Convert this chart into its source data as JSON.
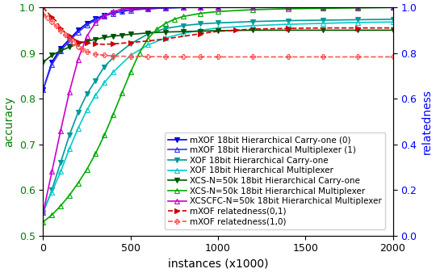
{
  "title": "",
  "xlabel": "instances (x1000)",
  "ylabel_left": "accuracy",
  "ylabel_right": "relatedness",
  "xlim": [
    0,
    2000
  ],
  "ylim_left": [
    0.5,
    1.0
  ],
  "ylim_right": [
    0.0,
    1.0
  ],
  "series": [
    {
      "label": "mXOF 18bit Hierarchical Carry-one (0)",
      "color": "#0000dd",
      "marker": "v",
      "fillstyle": "full",
      "linestyle": "-",
      "axis": "left",
      "x": [
        0,
        50,
        100,
        150,
        200,
        250,
        300,
        350,
        400,
        450,
        500,
        600,
        700,
        800,
        900,
        1000,
        1200,
        1400,
        1600,
        1800,
        2000
      ],
      "y": [
        0.82,
        0.88,
        0.91,
        0.93,
        0.95,
        0.965,
        0.975,
        0.983,
        0.988,
        0.992,
        0.995,
        0.997,
        0.999,
        1.0,
        1.0,
        1.0,
        1.0,
        1.0,
        1.0,
        1.0,
        1.0
      ]
    },
    {
      "label": "mXOF 18bit Hierarchical Multiplexer (1)",
      "color": "#3333ff",
      "marker": "^",
      "fillstyle": "none",
      "linestyle": "-",
      "axis": "left",
      "x": [
        0,
        50,
        100,
        150,
        200,
        250,
        300,
        350,
        400,
        450,
        500,
        600,
        700,
        800,
        900,
        1000,
        1200,
        1400,
        1600,
        1800,
        2000
      ],
      "y": [
        0.82,
        0.875,
        0.905,
        0.926,
        0.946,
        0.961,
        0.973,
        0.981,
        0.987,
        0.991,
        0.994,
        0.997,
        0.999,
        1.0,
        1.0,
        1.0,
        1.0,
        1.0,
        1.0,
        1.0,
        1.0
      ]
    },
    {
      "label": "XOF 18bit Hierarchical Carry-one",
      "color": "#009999",
      "marker": "v",
      "fillstyle": "full",
      "linestyle": "-",
      "axis": "left",
      "x": [
        0,
        50,
        100,
        150,
        200,
        250,
        300,
        350,
        400,
        500,
        600,
        700,
        800,
        900,
        1000,
        1200,
        1400,
        1600,
        1800,
        2000
      ],
      "y": [
        0.55,
        0.6,
        0.66,
        0.72,
        0.77,
        0.81,
        0.84,
        0.87,
        0.89,
        0.92,
        0.942,
        0.954,
        0.96,
        0.964,
        0.966,
        0.969,
        0.971,
        0.972,
        0.973,
        0.974
      ]
    },
    {
      "label": "XOF 18bit Hierarchical Multiplexer",
      "color": "#00cccc",
      "marker": "^",
      "fillstyle": "none",
      "linestyle": "-",
      "axis": "left",
      "x": [
        0,
        50,
        100,
        150,
        200,
        250,
        300,
        350,
        400,
        500,
        600,
        700,
        800,
        900,
        1000,
        1200,
        1400,
        1600,
        1800,
        2000
      ],
      "y": [
        0.555,
        0.595,
        0.64,
        0.69,
        0.735,
        0.775,
        0.808,
        0.835,
        0.858,
        0.895,
        0.918,
        0.933,
        0.943,
        0.95,
        0.955,
        0.96,
        0.963,
        0.965,
        0.967,
        0.968
      ]
    },
    {
      "label": "XCS-N=50k 18bit Hierarchical Carry-one",
      "color": "#005500",
      "marker": "v",
      "fillstyle": "full",
      "linestyle": "-",
      "axis": "left",
      "x": [
        0,
        50,
        100,
        150,
        200,
        250,
        300,
        350,
        400,
        450,
        500,
        600,
        700,
        800,
        900,
        1000,
        1200,
        1400,
        1600,
        1800,
        2000
      ],
      "y": [
        0.88,
        0.895,
        0.905,
        0.913,
        0.92,
        0.926,
        0.93,
        0.934,
        0.937,
        0.939,
        0.941,
        0.944,
        0.946,
        0.947,
        0.948,
        0.949,
        0.95,
        0.95,
        0.95,
        0.95,
        0.95
      ]
    },
    {
      "label": "XCS-N=50k 18bit Hierarchical Multiplexer",
      "color": "#00aa00",
      "marker": "^",
      "fillstyle": "none",
      "linestyle": "-",
      "axis": "left",
      "x": [
        0,
        50,
        100,
        150,
        200,
        250,
        300,
        350,
        400,
        450,
        500,
        550,
        600,
        650,
        700,
        750,
        800,
        900,
        1000,
        1200,
        1400,
        1600,
        1800,
        2000
      ],
      "y": [
        0.53,
        0.545,
        0.565,
        0.588,
        0.615,
        0.645,
        0.68,
        0.72,
        0.765,
        0.812,
        0.858,
        0.9,
        0.932,
        0.952,
        0.965,
        0.974,
        0.98,
        0.987,
        0.991,
        0.995,
        0.997,
        0.998,
        0.999,
        1.0
      ]
    },
    {
      "label": "XCSCFC-N=50k 18bit Hierarchical Multiplexer",
      "color": "#cc00cc",
      "marker": "^",
      "fillstyle": "none",
      "linestyle": "-",
      "axis": "left",
      "x": [
        0,
        50,
        100,
        150,
        200,
        250,
        300,
        350,
        400,
        450,
        500,
        600,
        700,
        800,
        900,
        1000,
        1200,
        1400,
        1600,
        1800,
        2000
      ],
      "y": [
        0.55,
        0.64,
        0.73,
        0.815,
        0.886,
        0.937,
        0.967,
        0.982,
        0.991,
        0.996,
        0.998,
        0.999,
        1.0,
        1.0,
        1.0,
        1.0,
        1.0,
        1.0,
        1.0,
        1.0,
        1.0
      ]
    },
    {
      "label": "mXOF relatedness(0,1)",
      "color": "#cc0000",
      "marker": ">",
      "fillstyle": "full",
      "linestyle": "--",
      "axis": "right",
      "x": [
        0,
        25,
        50,
        75,
        100,
        125,
        150,
        175,
        200,
        225,
        250,
        275,
        300,
        350,
        400,
        450,
        500,
        600,
        700,
        800,
        900,
        1000,
        1100,
        1200,
        1400,
        1600,
        1800,
        2000
      ],
      "y": [
        1.0,
        0.978,
        0.957,
        0.94,
        0.91,
        0.89,
        0.875,
        0.862,
        0.85,
        0.848,
        0.845,
        0.843,
        0.84,
        0.838,
        0.84,
        0.843,
        0.846,
        0.853,
        0.862,
        0.873,
        0.885,
        0.895,
        0.9,
        0.905,
        0.908,
        0.91,
        0.91,
        0.91
      ]
    },
    {
      "label": "mXOF relatedness(1,0)",
      "color": "#ff5555",
      "marker": "+",
      "fillstyle": "none",
      "linestyle": "--",
      "axis": "right",
      "x": [
        0,
        25,
        50,
        75,
        100,
        125,
        150,
        175,
        200,
        225,
        250,
        300,
        350,
        400,
        500,
        600,
        700,
        800,
        900,
        1000,
        1200,
        1400,
        1600,
        1800,
        2000
      ],
      "y": [
        0.97,
        0.955,
        0.937,
        0.918,
        0.898,
        0.88,
        0.862,
        0.845,
        0.828,
        0.815,
        0.805,
        0.795,
        0.79,
        0.787,
        0.785,
        0.784,
        0.784,
        0.783,
        0.783,
        0.783,
        0.783,
        0.783,
        0.783,
        0.783,
        0.783
      ]
    }
  ],
  "legend_fontsize": 7.5,
  "tick_fontsize": 9,
  "label_fontsize": 10,
  "marker_size": 4,
  "linewidth": 1.2
}
